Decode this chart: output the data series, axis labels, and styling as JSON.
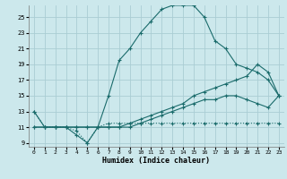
{
  "xlabel": "Humidex (Indice chaleur)",
  "bg_color": "#cce8ec",
  "grid_color": "#aacdd4",
  "line_color": "#1a6b6b",
  "xlim": [
    -0.5,
    23.5
  ],
  "ylim": [
    8.5,
    26.5
  ],
  "xticks": [
    0,
    1,
    2,
    3,
    4,
    5,
    6,
    7,
    8,
    9,
    10,
    11,
    12,
    13,
    14,
    15,
    16,
    17,
    18,
    19,
    20,
    21,
    22,
    23
  ],
  "yticks": [
    9,
    11,
    13,
    15,
    17,
    19,
    21,
    23,
    25
  ],
  "curve_max": {
    "x": [
      0,
      1,
      2,
      3,
      4,
      5,
      6,
      7,
      8,
      9,
      10,
      11,
      12,
      13,
      14,
      15,
      16,
      17,
      18,
      19,
      20,
      21,
      22,
      23
    ],
    "y": [
      13,
      11,
      11,
      11,
      10,
      9,
      11,
      15,
      19.5,
      21,
      23,
      24.5,
      26,
      26.5,
      26.5,
      26.5,
      25,
      22,
      21,
      19,
      18.5,
      18,
      17,
      15
    ]
  },
  "curve_upper_mid": {
    "x": [
      0,
      1,
      2,
      3,
      4,
      5,
      6,
      7,
      8,
      9,
      10,
      11,
      12,
      13,
      14,
      15,
      16,
      17,
      18,
      19,
      20,
      21,
      22,
      23
    ],
    "y": [
      11,
      11,
      11,
      11,
      11,
      11,
      11,
      11,
      11,
      11.5,
      12,
      12.5,
      13,
      13.5,
      14,
      15,
      15.5,
      16,
      16.5,
      17,
      17.5,
      19,
      18,
      15
    ]
  },
  "curve_lower_mid": {
    "x": [
      0,
      1,
      2,
      3,
      4,
      5,
      6,
      7,
      8,
      9,
      10,
      11,
      12,
      13,
      14,
      15,
      16,
      17,
      18,
      19,
      20,
      21,
      22,
      23
    ],
    "y": [
      11,
      11,
      11,
      11,
      11,
      11,
      11,
      11,
      11,
      11,
      11.5,
      12,
      12.5,
      13,
      13.5,
      14,
      14.5,
      14.5,
      15,
      15,
      14.5,
      14,
      13.5,
      15
    ]
  },
  "curve_min": {
    "x": [
      0,
      1,
      2,
      3,
      4,
      5,
      6,
      7,
      8,
      9,
      10,
      11,
      12,
      13,
      14,
      15,
      16,
      17,
      18,
      19,
      20,
      21,
      22,
      23
    ],
    "y": [
      13,
      11,
      11,
      11,
      10.5,
      9,
      11,
      11.5,
      11.5,
      11.5,
      11.5,
      11.5,
      11.5,
      11.5,
      11.5,
      11.5,
      11.5,
      11.5,
      11.5,
      11.5,
      11.5,
      11.5,
      11.5,
      11.5
    ]
  }
}
